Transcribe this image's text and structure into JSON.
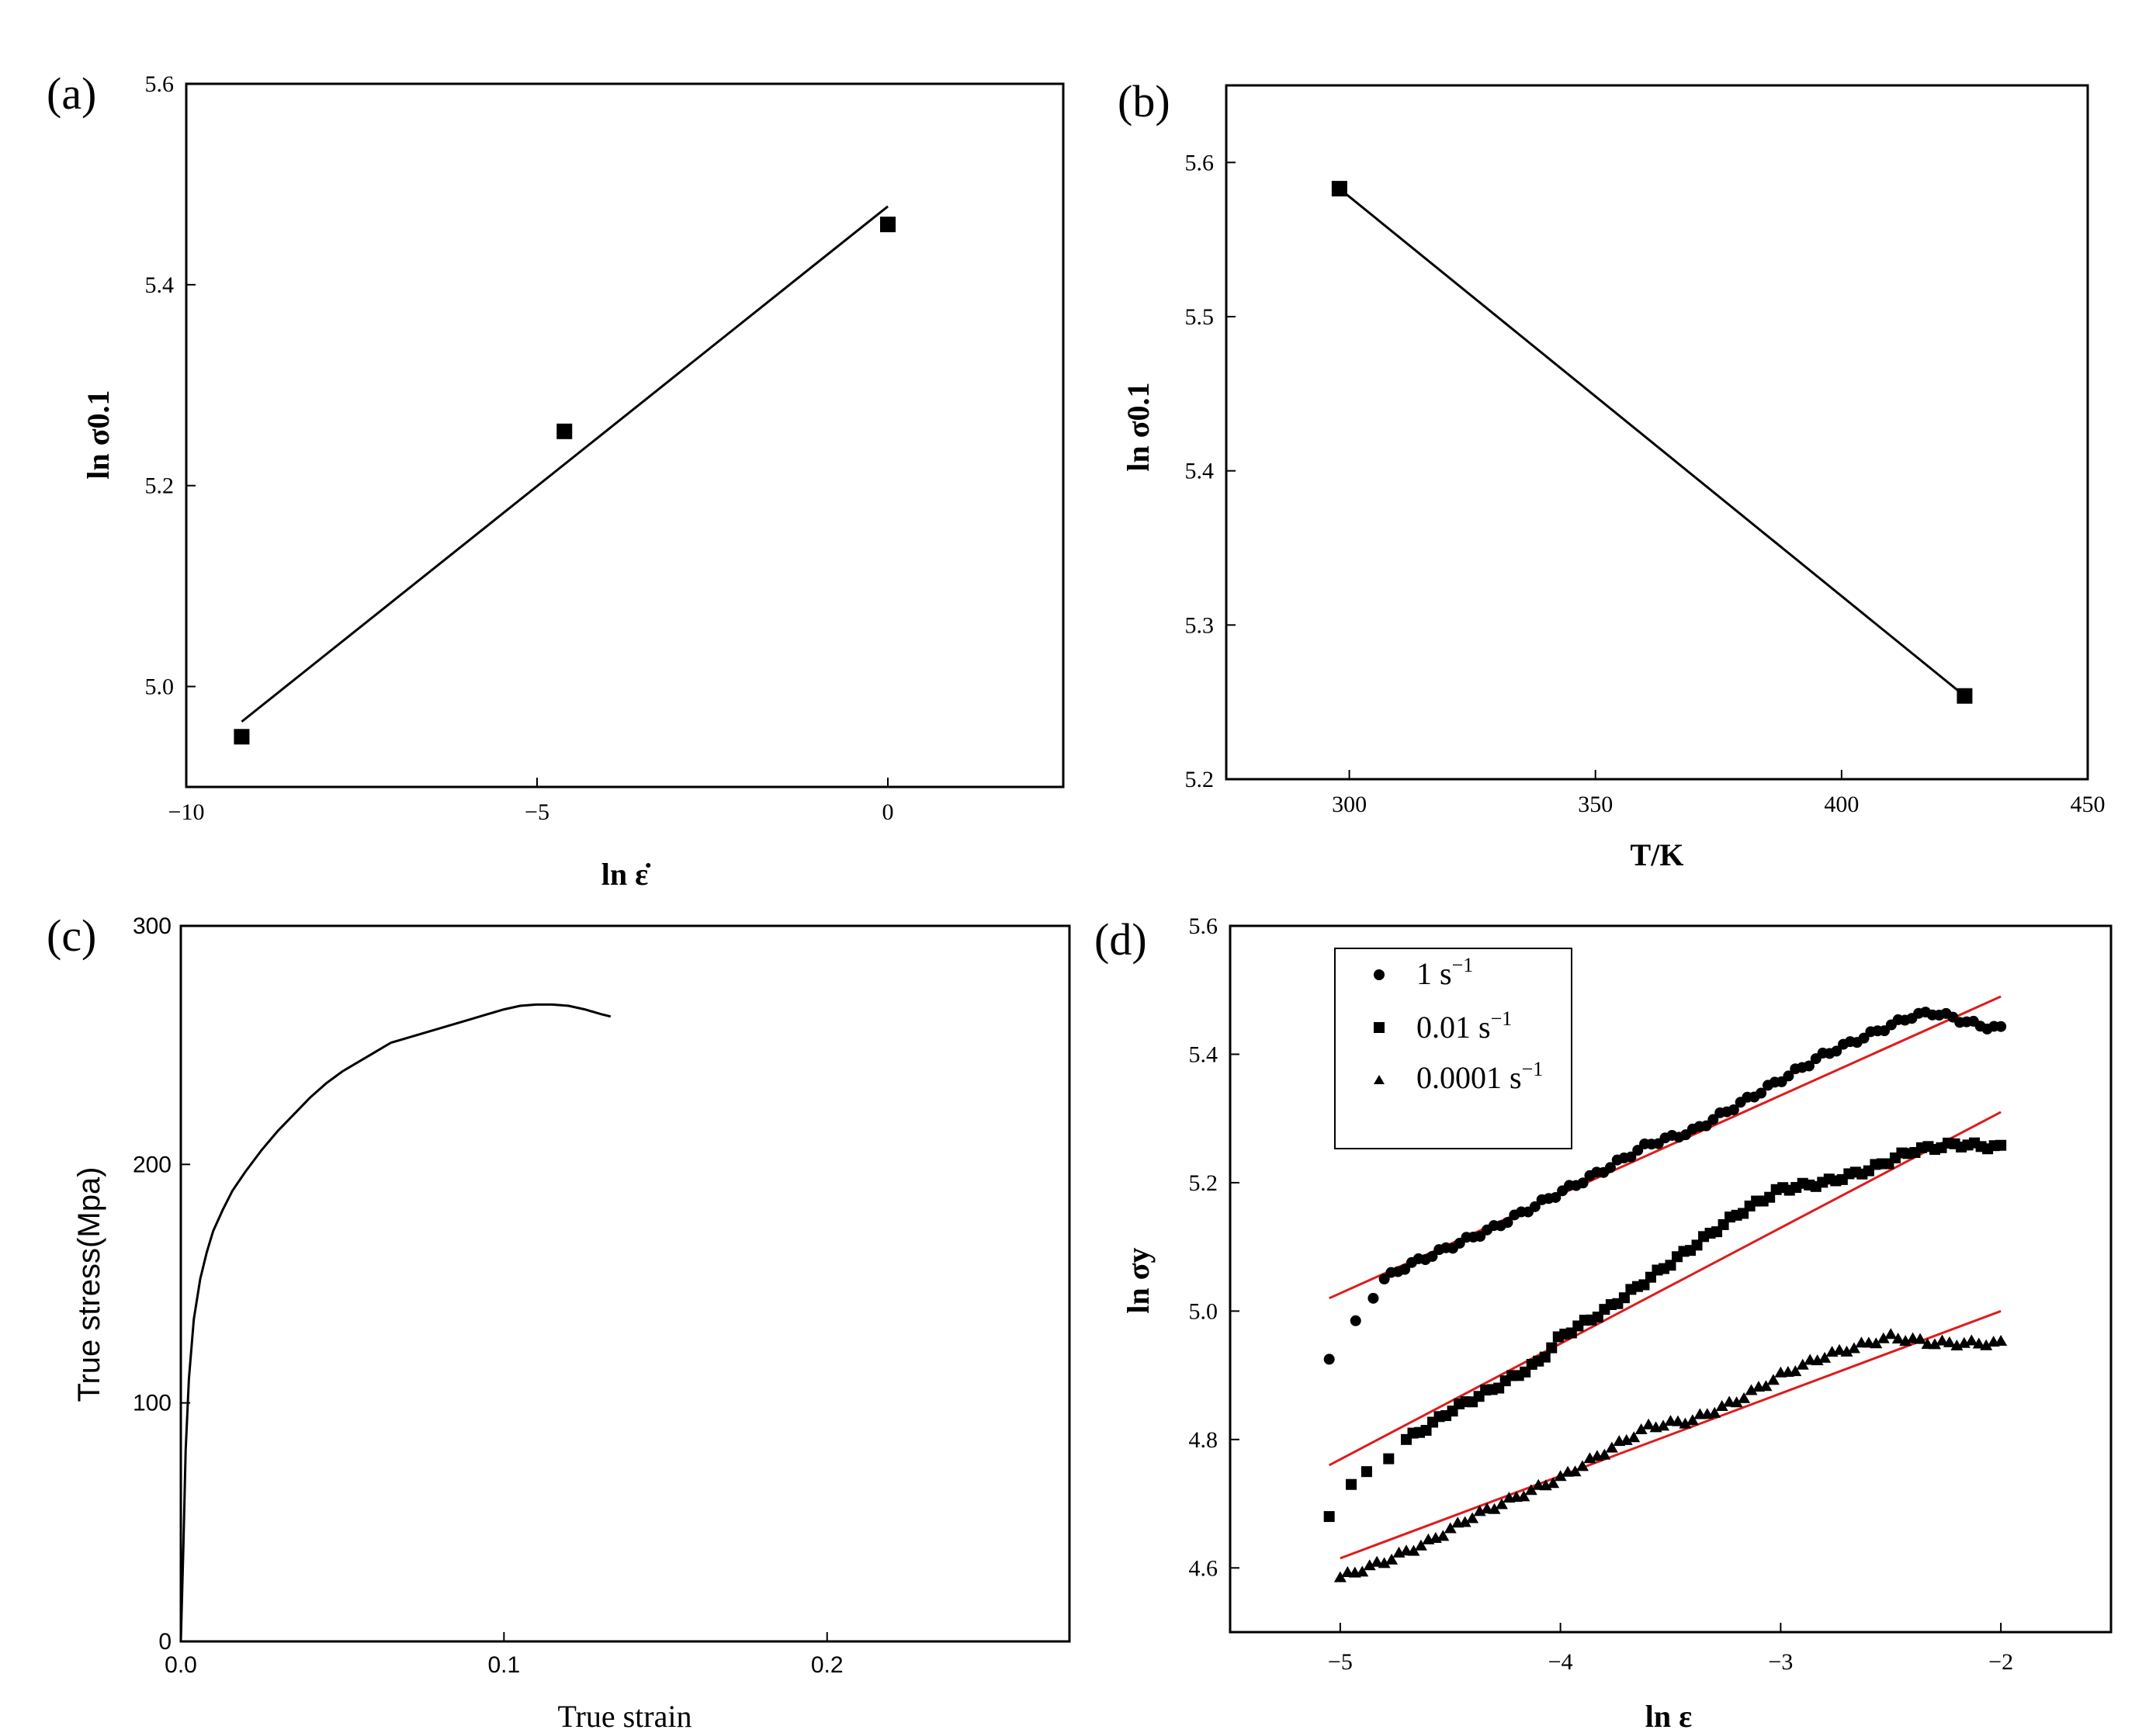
{
  "chart_data": [
    {
      "id": "a",
      "type": "scatter",
      "panel_label": "(a)",
      "xlabel": "ln ε̇",
      "ylabel": "ln σ0.1",
      "xlim": [
        -10,
        2.5
      ],
      "ylim": [
        4.9,
        5.6
      ],
      "xticks": [
        -10,
        -5,
        0
      ],
      "yticks": [
        5.0,
        5.2,
        5.4,
        5.6
      ],
      "xtick_labels": [
        "−10",
        "−5",
        "0"
      ],
      "ytick_labels": [
        "5.0",
        "5.2",
        "5.4",
        "5.6"
      ],
      "points": [
        {
          "x": -9.21,
          "y": 4.95
        },
        {
          "x": -4.61,
          "y": 5.254
        },
        {
          "x": 0,
          "y": 5.46
        }
      ],
      "fit_line": [
        {
          "x": -9.21,
          "y": 4.965
        },
        {
          "x": 0,
          "y": 5.478
        }
      ]
    },
    {
      "id": "b",
      "type": "scatter",
      "panel_label": "(b)",
      "xlabel": "T/K",
      "ylabel": "ln σ0.1",
      "xlim": [
        275,
        450
      ],
      "ylim": [
        5.2,
        5.65
      ],
      "xticks": [
        300,
        350,
        400,
        450
      ],
      "yticks": [
        5.2,
        5.3,
        5.4,
        5.5,
        5.6
      ],
      "xtick_labels": [
        "300",
        "350",
        "400",
        "450"
      ],
      "ytick_labels": [
        "5.2",
        "5.3",
        "5.4",
        "5.5",
        "5.6"
      ],
      "points": [
        {
          "x": 298,
          "y": 5.583
        },
        {
          "x": 425,
          "y": 5.254
        }
      ],
      "fit_line": [
        {
          "x": 298,
          "y": 5.583
        },
        {
          "x": 425,
          "y": 5.254
        }
      ]
    },
    {
      "id": "c",
      "type": "line",
      "panel_label": "(c)",
      "xlabel": "True strain",
      "ylabel": "True stress(Mpa)",
      "xlim": [
        0,
        0.275
      ],
      "ylim": [
        0,
        300
      ],
      "xticks": [
        0.0,
        0.1,
        0.2
      ],
      "yticks": [
        0,
        100,
        200,
        300
      ],
      "xtick_labels": [
        "0.0",
        "0.1",
        "0.2"
      ],
      "ytick_labels": [
        "0",
        "100",
        "200",
        "300"
      ],
      "curve": [
        [
          0.0,
          0
        ],
        [
          0.0008,
          40
        ],
        [
          0.0015,
          80
        ],
        [
          0.0025,
          110
        ],
        [
          0.004,
          135
        ],
        [
          0.006,
          152
        ],
        [
          0.008,
          163
        ],
        [
          0.01,
          172
        ],
        [
          0.013,
          181
        ],
        [
          0.016,
          189
        ],
        [
          0.02,
          197
        ],
        [
          0.025,
          206
        ],
        [
          0.03,
          214
        ],
        [
          0.035,
          221
        ],
        [
          0.04,
          228
        ],
        [
          0.045,
          234
        ],
        [
          0.05,
          239
        ],
        [
          0.055,
          243
        ],
        [
          0.06,
          247
        ],
        [
          0.065,
          251
        ],
        [
          0.07,
          253
        ],
        [
          0.075,
          255
        ],
        [
          0.08,
          257
        ],
        [
          0.085,
          259
        ],
        [
          0.09,
          261
        ],
        [
          0.095,
          263
        ],
        [
          0.1,
          265
        ],
        [
          0.105,
          266.5
        ],
        [
          0.11,
          267
        ],
        [
          0.115,
          267
        ],
        [
          0.12,
          266.5
        ],
        [
          0.125,
          265
        ],
        [
          0.13,
          263
        ],
        [
          0.133,
          262
        ]
      ]
    },
    {
      "id": "d",
      "type": "scatter",
      "panel_label": "(d)",
      "xlabel": "ln ε",
      "ylabel": "ln σy",
      "xlim": [
        -5.5,
        -1.5
      ],
      "ylim": [
        4.5,
        5.6
      ],
      "xticks": [
        -5,
        -4,
        -3,
        -2
      ],
      "yticks": [
        4.6,
        4.8,
        5.0,
        5.2,
        5.4,
        5.6
      ],
      "xtick_labels": [
        "−5",
        "−4",
        "−3",
        "−2"
      ],
      "ytick_labels": [
        "4.6",
        "4.8",
        "5.0",
        "5.2",
        "5.4",
        "5.6"
      ],
      "legend": [
        {
          "label": "1 s",
          "exp": "−1",
          "marker": "circle"
        },
        {
          "label": "0.01 s",
          "exp": "−1",
          "marker": "square"
        },
        {
          "label": "0.0001 s",
          "exp": "−1",
          "marker": "triangle"
        }
      ],
      "fit_color": "#dd1c1c",
      "series": [
        {
          "name": "1 s−1",
          "marker": "circle",
          "knots": [
            [
              -5.05,
              4.925
            ],
            [
              -4.93,
              4.985
            ],
            [
              -4.85,
              5.02
            ],
            [
              -4.8,
              5.05
            ],
            [
              -4.7,
              5.07
            ],
            [
              -4.5,
              5.1
            ],
            [
              -4.3,
              5.13
            ],
            [
              -4.0,
              5.185
            ],
            [
              -3.8,
              5.22
            ],
            [
              -3.6,
              5.26
            ],
            [
              -3.4,
              5.28
            ],
            [
              -3.2,
              5.32
            ],
            [
              -3.0,
              5.36
            ],
            [
              -2.8,
              5.4
            ],
            [
              -2.6,
              5.43
            ],
            [
              -2.4,
              5.46
            ],
            [
              -2.3,
              5.465
            ],
            [
              -2.2,
              5.455
            ],
            [
              -2.1,
              5.445
            ],
            [
              -2.0,
              5.44
            ]
          ],
          "start": -4.8,
          "fit": [
            [
              -5.05,
              5.02
            ],
            [
              -2.0,
              5.49
            ]
          ]
        },
        {
          "name": "0.01 s−1",
          "marker": "square",
          "knots": [
            [
              -5.05,
              4.68
            ],
            [
              -4.95,
              4.73
            ],
            [
              -4.88,
              4.75
            ],
            [
              -4.78,
              4.77
            ],
            [
              -4.7,
              4.8
            ],
            [
              -4.6,
              4.82
            ],
            [
              -4.5,
              4.845
            ],
            [
              -4.3,
              4.88
            ],
            [
              -4.1,
              4.92
            ],
            [
              -4.0,
              4.96
            ],
            [
              -3.8,
              5.0
            ],
            [
              -3.6,
              5.05
            ],
            [
              -3.4,
              5.1
            ],
            [
              -3.2,
              5.15
            ],
            [
              -3.0,
              5.19
            ],
            [
              -2.8,
              5.2
            ],
            [
              -2.6,
              5.22
            ],
            [
              -2.4,
              5.25
            ],
            [
              -2.2,
              5.26
            ],
            [
              -2.0,
              5.255
            ]
          ],
          "start": -4.7,
          "fit": [
            [
              -5.05,
              4.76
            ],
            [
              -2.0,
              5.31
            ]
          ]
        },
        {
          "name": "0.0001 s−1",
          "marker": "triangle",
          "knots": [
            [
              -5.0,
              4.585
            ],
            [
              -4.8,
              4.61
            ],
            [
              -4.6,
              4.64
            ],
            [
              -4.4,
              4.68
            ],
            [
              -4.2,
              4.71
            ],
            [
              -4.0,
              4.74
            ],
            [
              -3.8,
              4.78
            ],
            [
              -3.6,
              4.82
            ],
            [
              -3.4,
              4.83
            ],
            [
              -3.2,
              4.86
            ],
            [
              -3.0,
              4.9
            ],
            [
              -2.8,
              4.93
            ],
            [
              -2.6,
              4.95
            ],
            [
              -2.5,
              4.96
            ],
            [
              -2.4,
              4.955
            ],
            [
              -2.3,
              4.95
            ],
            [
              -2.2,
              4.95
            ],
            [
              -2.0,
              4.95
            ]
          ],
          "start": -5.0,
          "fit": [
            [
              -5.0,
              4.615
            ],
            [
              -2.0,
              5.0
            ]
          ]
        }
      ]
    }
  ]
}
